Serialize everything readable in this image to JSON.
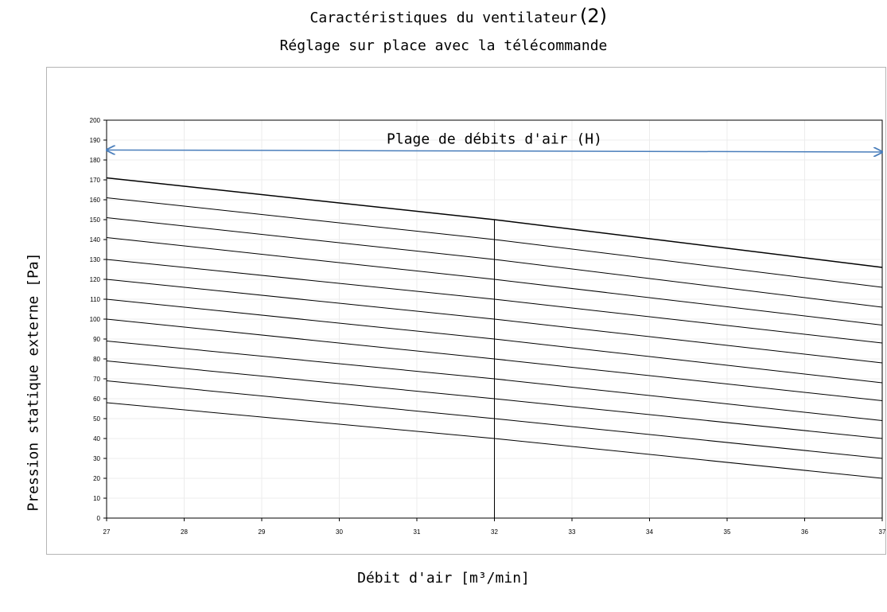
{
  "title_line1": "Caractéristiques du ventilateur",
  "title_suffix": "(2)",
  "title_line2": "Réglage sur place avec la télécommande",
  "colors": {
    "range_arrow": "#4a7ebb",
    "curve": "#000000",
    "grid": "#ececec"
  },
  "chart_data": {
    "type": "line",
    "xlabel": "Débit d'air [m³/min]",
    "ylabel": "Pression statique externe [Pa]",
    "xlim": [
      27,
      37
    ],
    "ylim": [
      0,
      200
    ],
    "x_ticks": [
      27,
      28,
      29,
      30,
      31,
      32,
      33,
      34,
      35,
      36,
      37
    ],
    "y_ticks": [
      0,
      10,
      20,
      30,
      40,
      50,
      60,
      70,
      80,
      90,
      100,
      110,
      120,
      130,
      140,
      150,
      160,
      170,
      180,
      190,
      200
    ],
    "grid": true,
    "annotations": [
      {
        "text": "Plage de débits d'air (H)",
        "type": "double-arrow",
        "x_from": 27,
        "x_to": 37,
        "y_from": 185,
        "y_to": 184
      }
    ],
    "vertical_line": {
      "x": 32,
      "y_from": 0,
      "y_to": 150
    },
    "series": [
      {
        "x": [
          27,
          32,
          37
        ],
        "values": [
          171,
          150,
          126
        ]
      },
      {
        "x": [
          27,
          32,
          37
        ],
        "values": [
          161,
          140,
          116
        ]
      },
      {
        "x": [
          27,
          32,
          37
        ],
        "values": [
          151,
          130,
          106
        ]
      },
      {
        "x": [
          27,
          32,
          37
        ],
        "values": [
          141,
          120,
          97
        ]
      },
      {
        "x": [
          27,
          32,
          37
        ],
        "values": [
          130,
          110,
          88
        ]
      },
      {
        "x": [
          27,
          32,
          37
        ],
        "values": [
          120,
          100,
          78
        ]
      },
      {
        "x": [
          27,
          32,
          37
        ],
        "values": [
          110,
          90,
          68
        ]
      },
      {
        "x": [
          27,
          32,
          37
        ],
        "values": [
          100,
          80,
          59
        ]
      },
      {
        "x": [
          27,
          32,
          37
        ],
        "values": [
          89,
          70,
          49
        ]
      },
      {
        "x": [
          27,
          32,
          37
        ],
        "values": [
          79,
          60,
          40
        ]
      },
      {
        "x": [
          27,
          32,
          37
        ],
        "values": [
          69,
          50,
          30
        ]
      },
      {
        "x": [
          27,
          32,
          37
        ],
        "values": [
          58,
          40,
          20
        ]
      }
    ]
  }
}
